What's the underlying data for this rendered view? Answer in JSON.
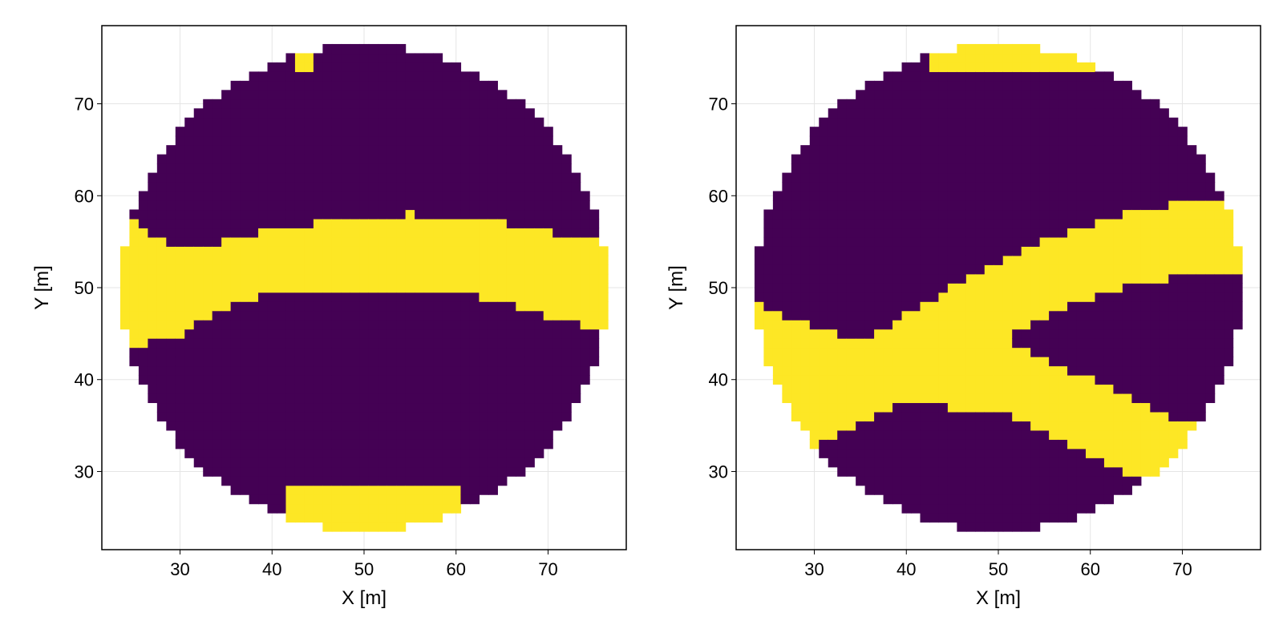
{
  "colors": {
    "background_class": "#440154",
    "channel_class": "#fde725",
    "grid": "#e5e5e5",
    "frame": "#000000"
  },
  "chart_data": [
    {
      "type": "heatmap",
      "title": "",
      "xlabel": "X [m]",
      "ylabel": "Y [m]",
      "xlim": [
        21.5,
        78.5
      ],
      "ylim": [
        21.5,
        78.5
      ],
      "xticks": [
        30,
        40,
        50,
        60,
        70
      ],
      "yticks": [
        30,
        40,
        50,
        60,
        70
      ],
      "grid": true,
      "cell_size": 1,
      "domain": {
        "shape": "disk",
        "center": [
          50,
          50
        ],
        "radius": 26
      },
      "categories": [
        "background",
        "channel"
      ],
      "channel_band": {
        "description": "horizontal channel",
        "bottom": [
          [
            25,
            43.5
          ],
          [
            30,
            45
          ],
          [
            35,
            48
          ],
          [
            40,
            49.5
          ],
          [
            45,
            50
          ],
          [
            55,
            50
          ],
          [
            60,
            49.5
          ],
          [
            65,
            48.5
          ],
          [
            70,
            47
          ],
          [
            75,
            45.5
          ]
        ],
        "top": [
          [
            25,
            57
          ],
          [
            30,
            54
          ],
          [
            35,
            55
          ],
          [
            40,
            56.5
          ],
          [
            45,
            57
          ],
          [
            55,
            58
          ],
          [
            60,
            57.5
          ],
          [
            65,
            57
          ],
          [
            70,
            56
          ],
          [
            75,
            55
          ]
        ]
      },
      "extra_channel_regions": [
        {
          "description": "bottom patch",
          "x": [
            42,
            60
          ],
          "y": [
            24,
            28
          ]
        },
        {
          "description": "top patch",
          "x": [
            43,
            44
          ],
          "y": [
            74,
            76
          ]
        }
      ]
    },
    {
      "type": "heatmap",
      "title": "",
      "xlabel": "X [m]",
      "ylabel": "Y [m]",
      "xlim": [
        21.5,
        78.5
      ],
      "ylim": [
        21.5,
        78.5
      ],
      "xticks": [
        30,
        40,
        50,
        60,
        70
      ],
      "yticks": [
        30,
        40,
        50,
        60,
        70
      ],
      "grid": true,
      "cell_size": 1,
      "domain": {
        "shape": "disk",
        "center": [
          50,
          50
        ],
        "radius": 26
      },
      "categories": [
        "background",
        "channel"
      ],
      "channels": [
        {
          "description": "ascending channel",
          "center_line": [
            [
              24,
              44
            ],
            [
              35,
              40
            ],
            [
              45,
              46
            ],
            [
              55,
              51
            ],
            [
              65,
              54.5
            ],
            [
              76,
              56
            ]
          ],
          "half_width": 4
        },
        {
          "description": "descending channel",
          "center_line": [
            [
              30,
              37
            ],
            [
              40,
              41.5
            ],
            [
              50,
              40.5
            ],
            [
              60,
              36
            ],
            [
              70,
              31
            ]
          ],
          "half_width": 4
        }
      ],
      "extra_channel_regions": [
        {
          "description": "top rim band",
          "x": [
            43,
            67
          ],
          "y": [
            74,
            77
          ]
        }
      ]
    }
  ]
}
